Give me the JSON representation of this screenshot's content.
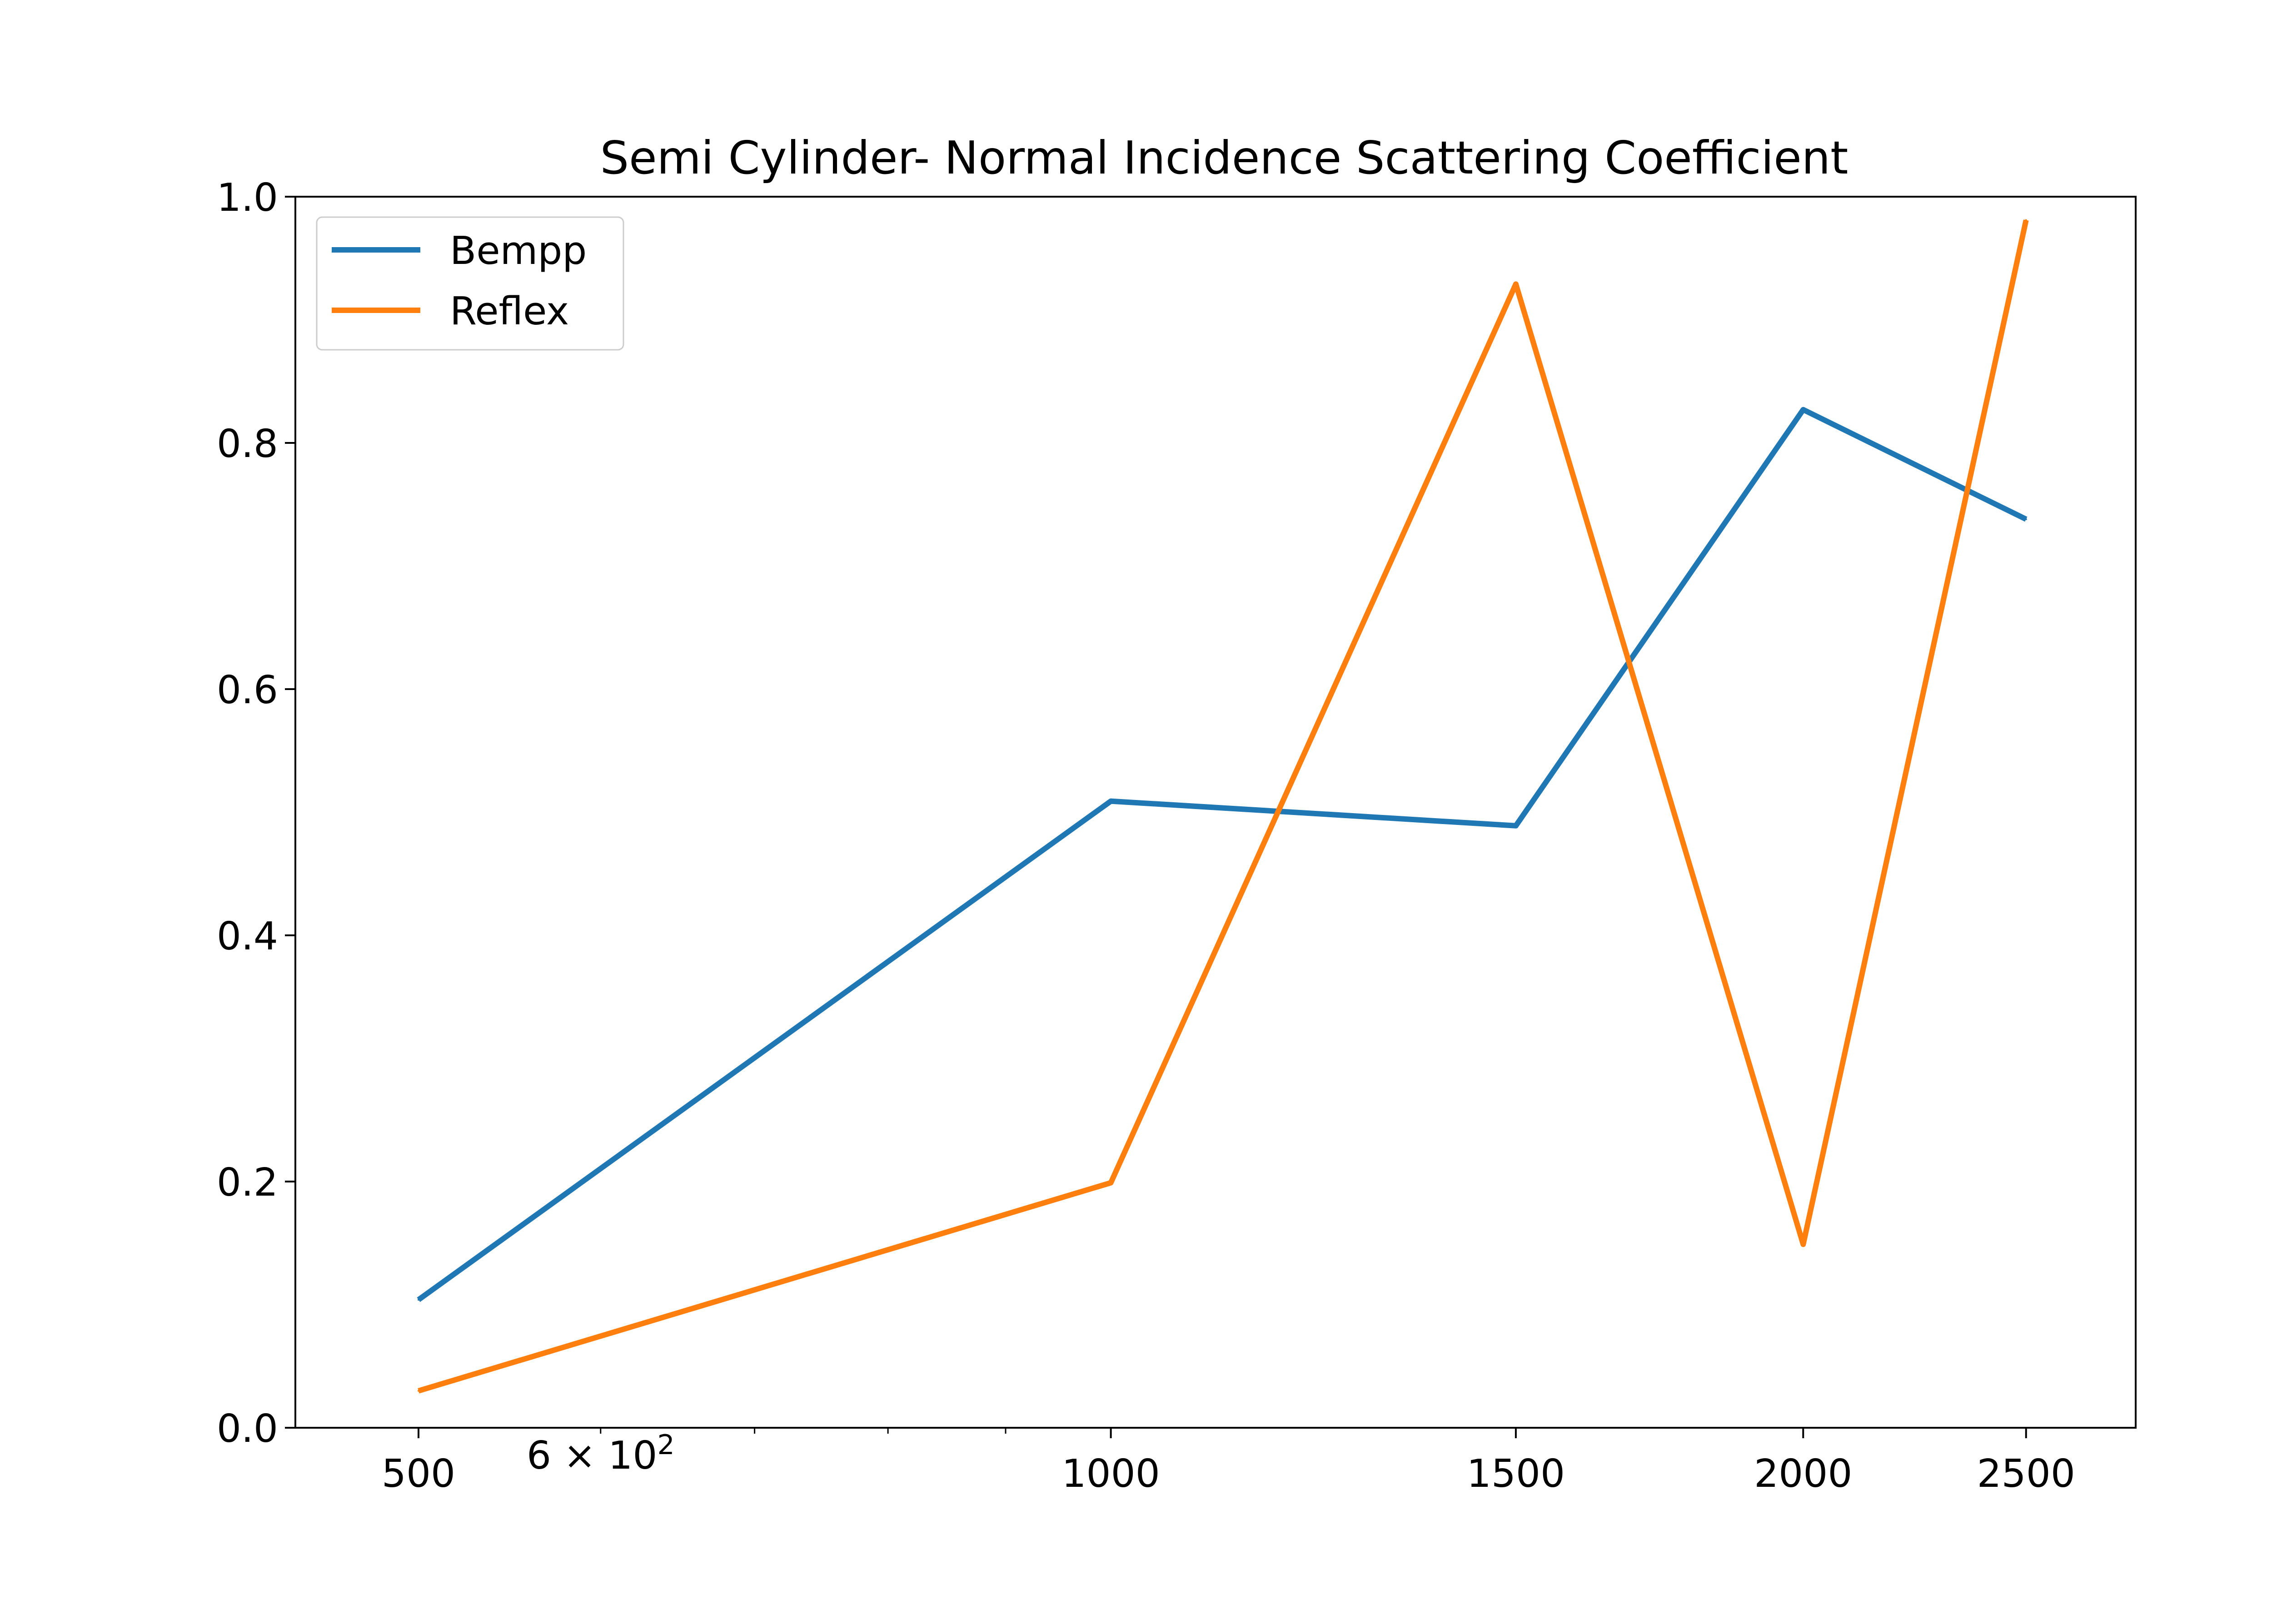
{
  "chart_data": {
    "type": "line",
    "title": "Semi Cylinder- Normal Incidence Scattering Coefficient",
    "xlabel": "",
    "ylabel": "",
    "x_scale": "log",
    "x": [
      500,
      1000,
      1500,
      2000,
      2500
    ],
    "xlim": [
      442,
      2790
    ],
    "ylim": [
      0.0,
      1.0
    ],
    "x_tick_labels": [
      {
        "value": 500,
        "label": "500"
      },
      {
        "value": 1000,
        "label": "1000"
      },
      {
        "value": 1500,
        "label": "1500"
      },
      {
        "value": 2000,
        "label": "2000"
      },
      {
        "value": 2500,
        "label": "2500"
      }
    ],
    "x_minor_label": {
      "value": 600,
      "base": "6 × 10",
      "exponent": "2"
    },
    "x_minor_ticks": [
      600,
      700,
      800,
      900
    ],
    "y_ticks": [
      {
        "value": 0.0,
        "label": "0.0"
      },
      {
        "value": 0.2,
        "label": "0.2"
      },
      {
        "value": 0.4,
        "label": "0.4"
      },
      {
        "value": 0.6,
        "label": "0.6"
      },
      {
        "value": 0.8,
        "label": "0.8"
      },
      {
        "value": 1.0,
        "label": "1.0"
      }
    ],
    "grid": false,
    "legend_position": "top-left",
    "series": [
      {
        "name": "Bempp",
        "color": "#1f77b4",
        "values": [
          0.104,
          0.509,
          0.489,
          0.827,
          0.738
        ]
      },
      {
        "name": "Reflex",
        "color": "#ff7f0e",
        "values": [
          0.03,
          0.199,
          0.929,
          0.149,
          0.981
        ]
      }
    ]
  }
}
